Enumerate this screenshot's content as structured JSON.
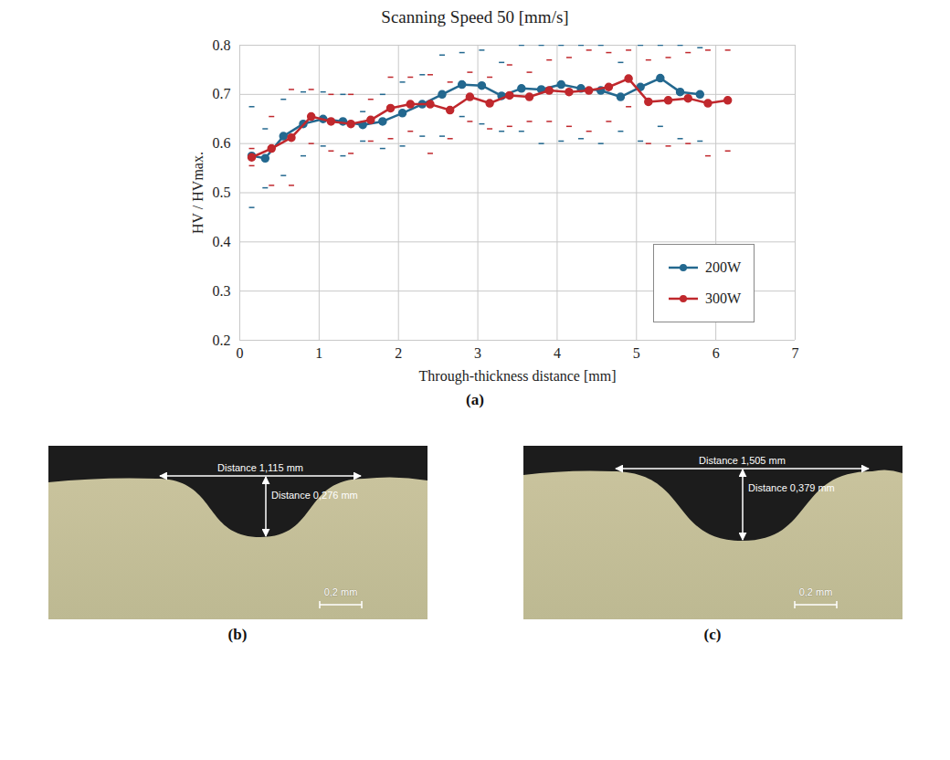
{
  "chart_data": {
    "type": "line",
    "title": "Scanning Speed 50 [mm/s]",
    "panel_label": "(a)",
    "x_label": "Through-thickness distance [mm]",
    "y_label": "HV / HVmax.",
    "xlim": [
      0,
      7
    ],
    "xticks": [
      0,
      1,
      2,
      3,
      4,
      5,
      6,
      7
    ],
    "ylim": [
      0.2,
      0.8
    ],
    "yticks": [
      0.2,
      0.3,
      0.4,
      0.5,
      0.6,
      0.7,
      0.8
    ],
    "grid": true,
    "legend": "bottom-right",
    "marker": "circle",
    "series": [
      {
        "name": "200W",
        "color": "#23688f",
        "x": [
          0.15,
          0.32,
          0.55,
          0.8,
          1.05,
          1.3,
          1.55,
          1.8,
          2.05,
          2.3,
          2.55,
          2.8,
          3.05,
          3.3,
          3.55,
          3.8,
          4.05,
          4.3,
          4.55,
          4.8,
          5.05,
          5.3,
          5.55,
          5.8
        ],
        "values": [
          0.575,
          0.57,
          0.615,
          0.64,
          0.65,
          0.645,
          0.638,
          0.645,
          0.662,
          0.68,
          0.7,
          0.72,
          0.718,
          0.697,
          0.712,
          0.71,
          0.72,
          0.712,
          0.708,
          0.695,
          0.715,
          0.733,
          0.705,
          0.7
        ],
        "error_upper": [
          0.675,
          0.63,
          0.69,
          0.705,
          0.705,
          0.7,
          0.665,
          0.7,
          0.725,
          0.74,
          0.78,
          0.785,
          0.79,
          0.765,
          0.8,
          0.8,
          0.8,
          0.8,
          0.8,
          0.765,
          0.8,
          0.8,
          0.8,
          0.795
        ],
        "error_lower": [
          0.47,
          0.51,
          0.535,
          0.575,
          0.595,
          0.575,
          0.605,
          0.59,
          0.595,
          0.615,
          0.615,
          0.655,
          0.64,
          0.625,
          0.625,
          0.6,
          0.605,
          0.61,
          0.6,
          0.625,
          0.605,
          0.635,
          0.61,
          0.605
        ]
      },
      {
        "name": "300W",
        "color": "#c0282d",
        "x": [
          0.15,
          0.4,
          0.65,
          0.9,
          1.15,
          1.4,
          1.65,
          1.9,
          2.15,
          2.4,
          2.65,
          2.9,
          3.15,
          3.4,
          3.65,
          3.9,
          4.15,
          4.4,
          4.65,
          4.9,
          5.15,
          5.4,
          5.65,
          5.9,
          6.15
        ],
        "values": [
          0.572,
          0.59,
          0.612,
          0.655,
          0.645,
          0.64,
          0.648,
          0.672,
          0.68,
          0.68,
          0.668,
          0.695,
          0.682,
          0.698,
          0.695,
          0.708,
          0.705,
          0.708,
          0.715,
          0.732,
          0.685,
          0.688,
          0.692,
          0.682,
          0.688
        ],
        "error_upper": [
          0.59,
          0.655,
          0.71,
          0.71,
          0.7,
          0.7,
          0.69,
          0.735,
          0.735,
          0.74,
          0.725,
          0.745,
          0.735,
          0.76,
          0.745,
          0.77,
          0.775,
          0.79,
          0.785,
          0.79,
          0.77,
          0.775,
          0.785,
          0.79,
          0.79
        ],
        "error_lower": [
          0.555,
          0.515,
          0.515,
          0.6,
          0.585,
          0.58,
          0.605,
          0.61,
          0.625,
          0.58,
          0.61,
          0.645,
          0.63,
          0.635,
          0.645,
          0.645,
          0.635,
          0.625,
          0.645,
          0.675,
          0.6,
          0.595,
          0.6,
          0.575,
          0.585
        ]
      }
    ]
  },
  "micrographs": [
    {
      "label": "(b)",
      "width_text": "Distance 1,115 mm",
      "depth_text": "Distance 0,276 mm",
      "scale_bar": "0,2 mm"
    },
    {
      "label": "(c)",
      "width_text": "Distance 1,505 mm",
      "depth_text": "Distance 0,379 mm",
      "scale_bar": "0,2 mm"
    }
  ]
}
